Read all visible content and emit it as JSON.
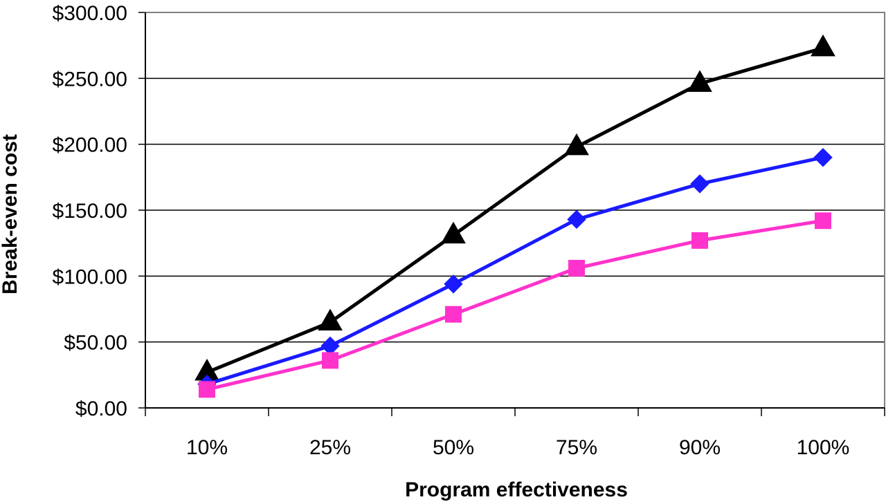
{
  "chart_data": {
    "type": "line",
    "categories": [
      "10%",
      "25%",
      "50%",
      "75%",
      "90%",
      "100%"
    ],
    "xlabel": "Program effectiveness",
    "ylabel": "Break-even cost",
    "ylim": [
      0,
      300
    ],
    "ytick_labels": [
      "$0.00",
      "$50.00",
      "$100.00",
      "$150.00",
      "$200.00",
      "$250.00",
      "$300.00"
    ],
    "yticks": [
      0,
      50,
      100,
      150,
      200,
      250,
      300
    ],
    "grid": true,
    "series": [
      {
        "marker": "triangle",
        "color": "#000000",
        "values": [
          27,
          65,
          131,
          198,
          246,
          273
        ]
      },
      {
        "marker": "diamond",
        "color": "#1a1aff",
        "values": [
          18,
          47,
          94,
          143,
          170,
          190
        ]
      },
      {
        "marker": "square",
        "color": "#ff33cc",
        "values": [
          14,
          36,
          71,
          106,
          127,
          142
        ]
      }
    ]
  }
}
